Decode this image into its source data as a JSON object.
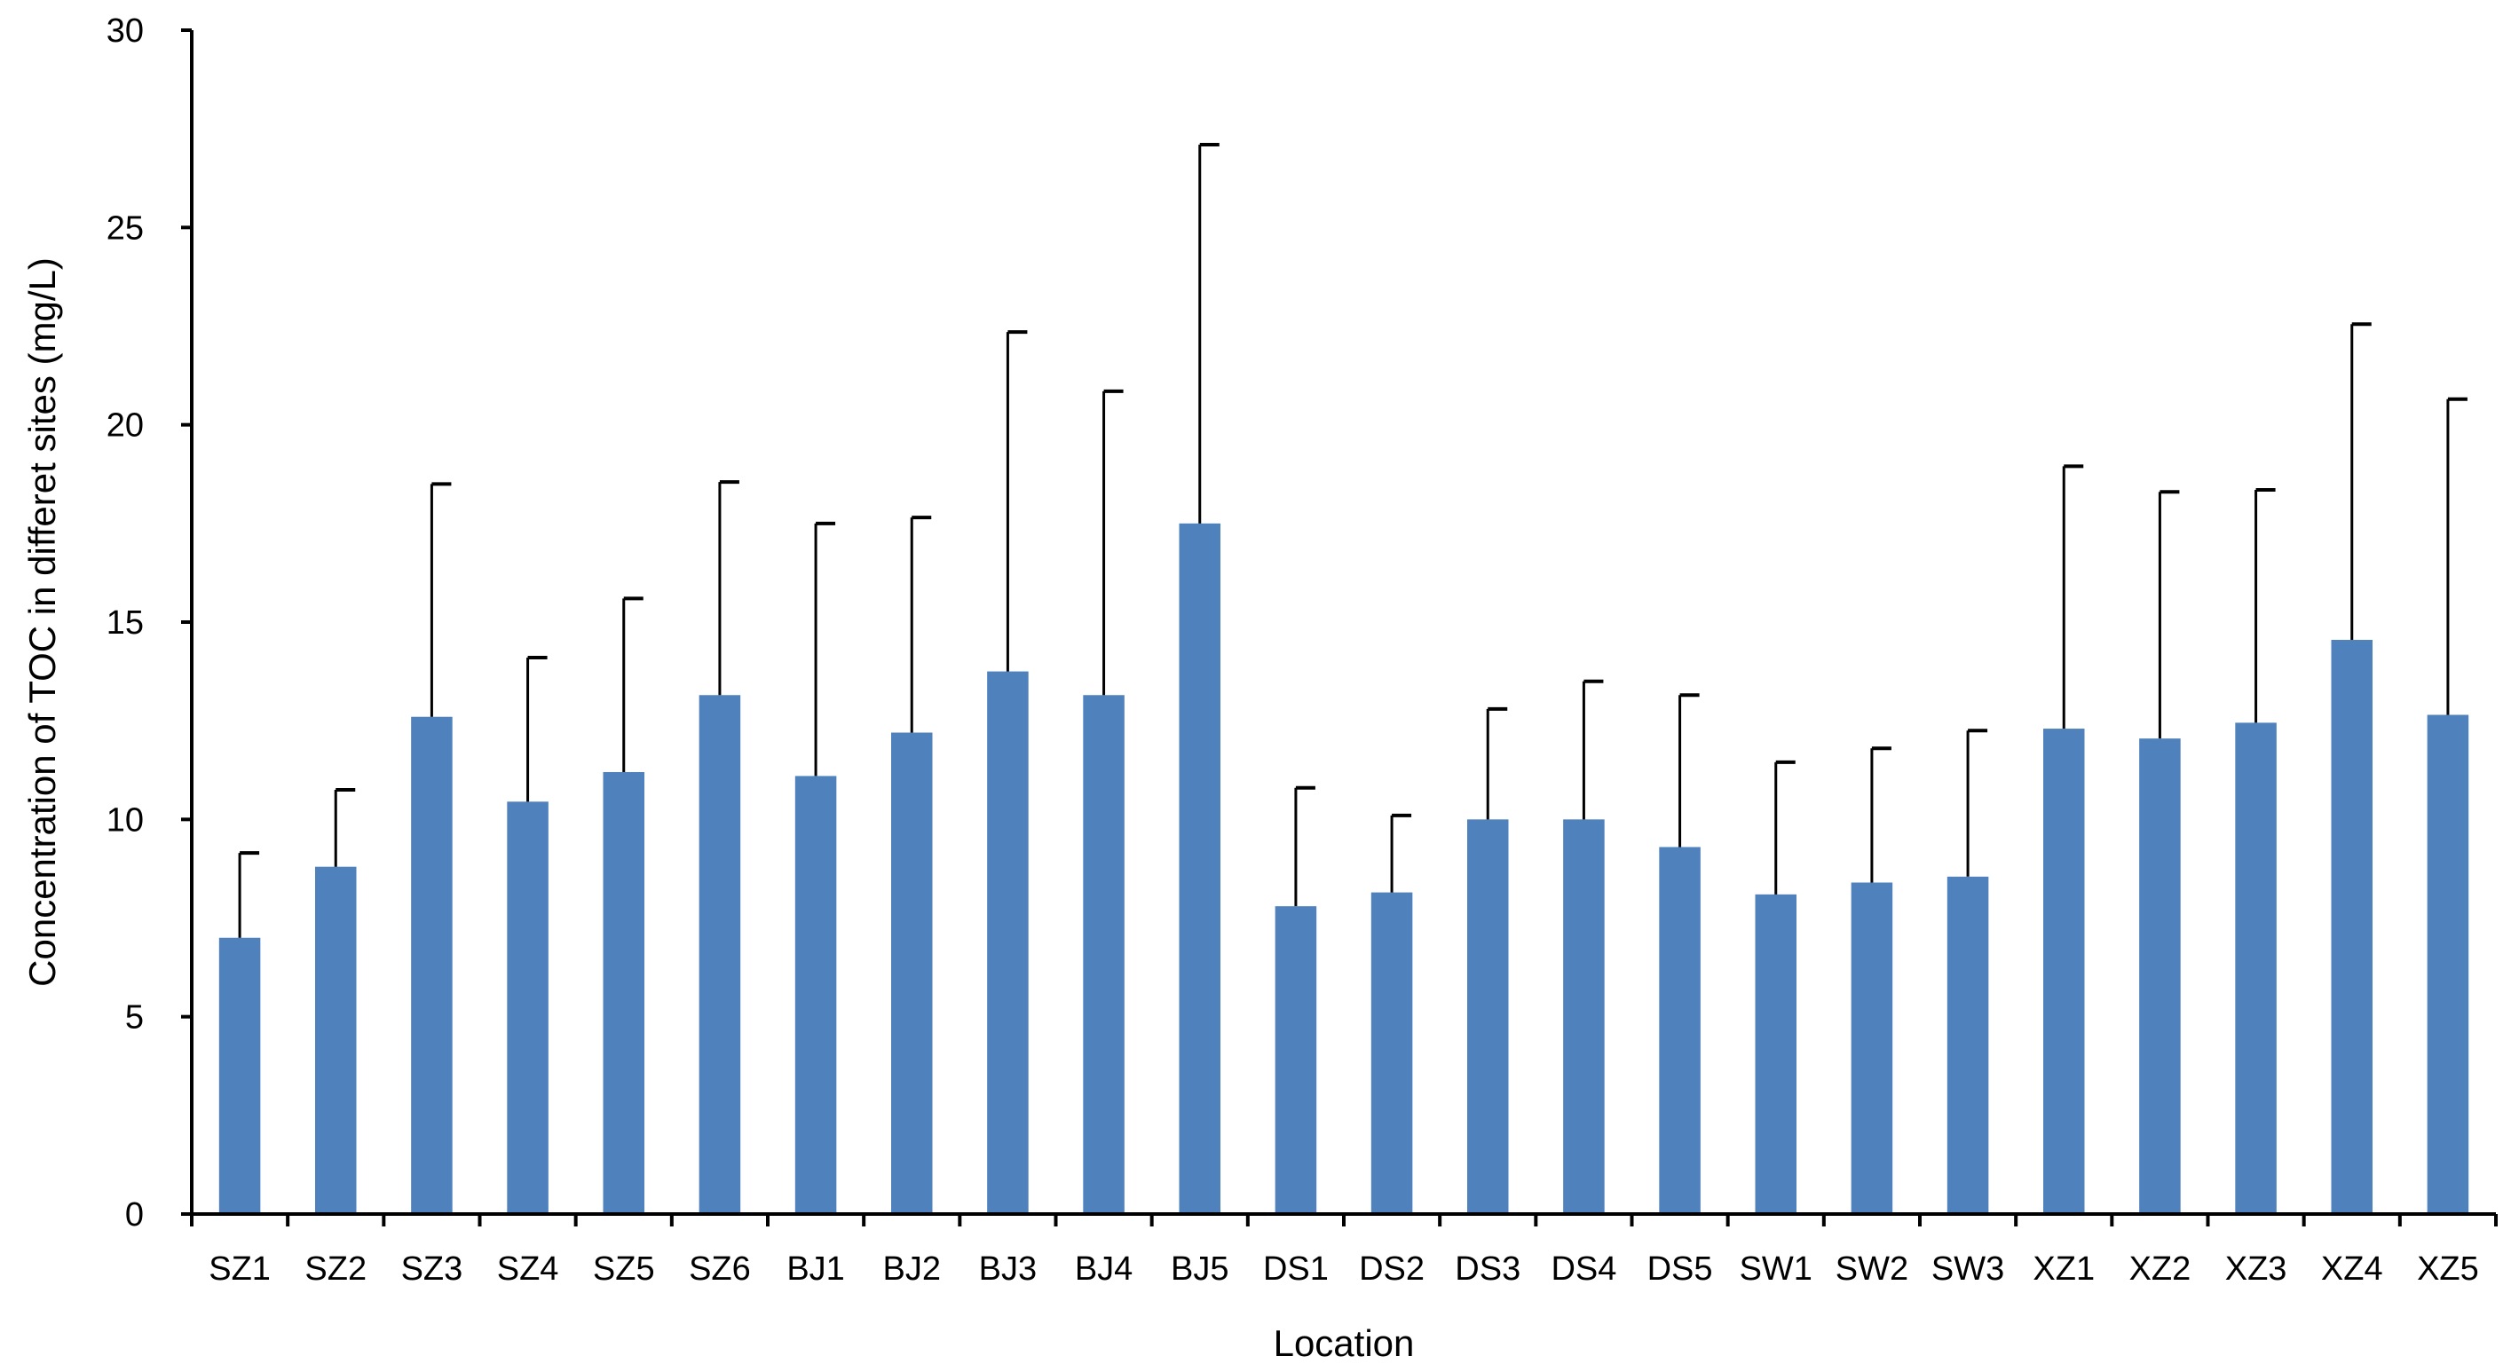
{
  "chart_data": {
    "type": "bar",
    "title": "",
    "xlabel": "Location",
    "ylabel": "Concentration of TOC in differet sites (mg/L)",
    "categories": [
      "SZ1",
      "SZ2",
      "SZ3",
      "SZ4",
      "SZ5",
      "SZ6",
      "BJ1",
      "BJ2",
      "BJ3",
      "BJ4",
      "BJ5",
      "DS1",
      "DS2",
      "DS3",
      "DS4",
      "DS5",
      "SW1",
      "SW2",
      "SW3",
      "XZ1",
      "XZ2",
      "XZ3",
      "XZ4",
      "XZ5"
    ],
    "values": [
      7.0,
      8.8,
      12.6,
      10.45,
      11.2,
      13.15,
      11.1,
      12.2,
      13.75,
      13.15,
      17.5,
      7.8,
      8.15,
      10.0,
      10.0,
      9.3,
      8.1,
      8.4,
      8.55,
      12.3,
      12.05,
      12.45,
      14.55,
      12.65
    ],
    "error_upper": [
      2.15,
      1.95,
      5.9,
      3.65,
      4.4,
      5.4,
      6.4,
      5.45,
      8.6,
      7.7,
      9.6,
      3.0,
      1.95,
      2.8,
      3.5,
      3.85,
      3.35,
      3.4,
      3.7,
      6.65,
      6.25,
      5.9,
      8.0,
      8.0
    ],
    "ylim": [
      0,
      30
    ],
    "yticks": [
      0,
      5,
      10,
      15,
      20,
      25,
      30
    ],
    "grid": false,
    "legend": "none",
    "colors": {
      "bar": "#4f81bd",
      "axis": "#000000",
      "errorbar": "#000000"
    }
  }
}
